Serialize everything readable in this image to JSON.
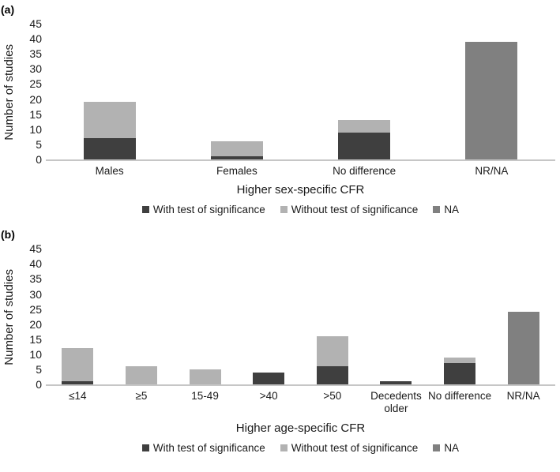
{
  "colors": {
    "with_test": "#3f3f3f",
    "without_test": "#b2b2b2",
    "na": "#808080",
    "axis_line": "#c6c6c6",
    "text": "#1a1a1a"
  },
  "chart_data": [
    {
      "type": "bar",
      "stacked": true,
      "panel_label": "(a)",
      "title": "",
      "xlabel": "Higher sex-specific CFR",
      "ylabel": "Number of studies",
      "ylim": [
        0,
        45
      ],
      "y_ticks": [
        0,
        5,
        10,
        15,
        20,
        25,
        30,
        35,
        40,
        45
      ],
      "grid": false,
      "legend_position": "bottom",
      "categories": [
        "Males",
        "Females",
        "No difference",
        "NR/NA"
      ],
      "series": [
        {
          "name": "With test of significance",
          "color": "#3f3f3f",
          "values": [
            7,
            1,
            9,
            0
          ]
        },
        {
          "name": "Without test of significance",
          "color": "#b2b2b2",
          "values": [
            12,
            5,
            4,
            0
          ]
        },
        {
          "name": "NA",
          "color": "#808080",
          "values": [
            0,
            0,
            0,
            39
          ]
        }
      ]
    },
    {
      "type": "bar",
      "stacked": true,
      "panel_label": "(b)",
      "title": "",
      "xlabel": "Higher age-specific CFR",
      "ylabel": "Number of studies",
      "ylim": [
        0,
        45
      ],
      "y_ticks": [
        0,
        5,
        10,
        15,
        20,
        25,
        30,
        35,
        40,
        45
      ],
      "grid": false,
      "legend_position": "bottom",
      "categories": [
        "≤14",
        "≥5",
        "15-49",
        ">40",
        ">50",
        "Decedents\nolder",
        "No difference",
        "NR/NA"
      ],
      "series": [
        {
          "name": "With test of significance",
          "color": "#3f3f3f",
          "values": [
            1,
            0,
            0,
            4,
            6,
            1,
            7,
            0
          ]
        },
        {
          "name": "Without test of significance",
          "color": "#b2b2b2",
          "values": [
            11,
            6,
            5,
            0,
            10,
            0,
            2,
            0
          ]
        },
        {
          "name": "NA",
          "color": "#808080",
          "values": [
            0,
            0,
            0,
            0,
            0,
            0,
            0,
            24
          ]
        }
      ]
    }
  ]
}
